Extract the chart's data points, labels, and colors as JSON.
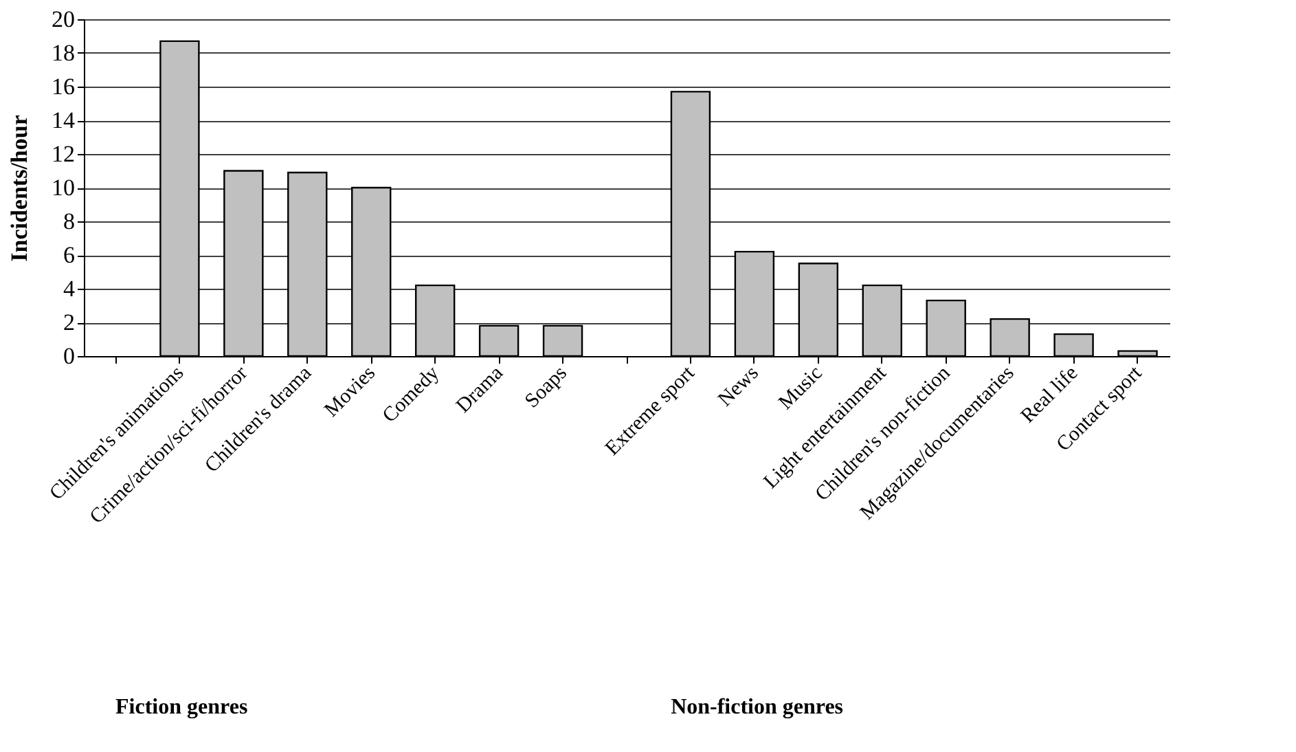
{
  "chart_data": {
    "type": "bar",
    "ylabel": "Incidents/hour",
    "categories": [
      null,
      "Children's animations",
      "Crime/action/sci-fi/horror",
      "Children's  drama",
      "Movies",
      "Comedy",
      "Drama",
      "Soaps",
      null,
      "Extreme sport",
      "News",
      "Music",
      "Light entertainment",
      "Children's non-fiction",
      "Magazine/documentaries",
      "Real life",
      "Contact sport"
    ],
    "values": [
      null,
      18.7,
      11.0,
      10.9,
      10.0,
      4.2,
      1.8,
      1.8,
      null,
      15.7,
      6.2,
      5.5,
      4.2,
      3.3,
      2.2,
      1.3,
      0.3
    ],
    "color": "#c0c0c0",
    "ylim": [
      0,
      20
    ],
    "yticks": [
      0,
      2,
      4,
      6,
      8,
      10,
      12,
      14,
      16,
      18,
      20
    ],
    "grid": "y",
    "annotations": [
      "Fiction genres",
      "Non-fiction genres"
    ]
  }
}
